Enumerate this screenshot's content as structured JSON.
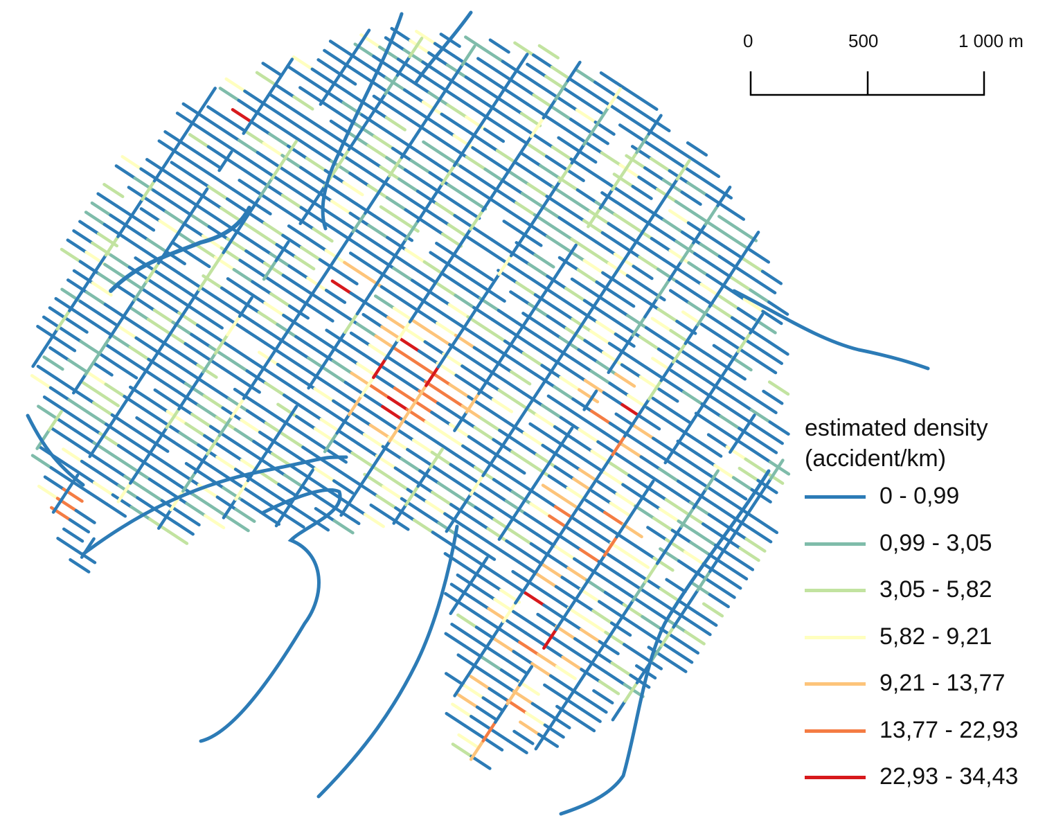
{
  "scale_bar": {
    "labels": [
      "0",
      "500",
      "1 000 m"
    ]
  },
  "legend": {
    "title_line1": "estimated density",
    "title_line2": "(accident/km)",
    "classes": [
      {
        "label": "0 - 0,99",
        "color": "#2c7bb6"
      },
      {
        "label": "0,99 - 3,05",
        "color": "#7fbcaa"
      },
      {
        "label": "3,05 - 5,82",
        "color": "#c2e3a0"
      },
      {
        "label": "5,82 - 9,21",
        "color": "#ffffbf"
      },
      {
        "label": "9,21 - 13,77",
        "color": "#fdc47a"
      },
      {
        "label": "13,77 - 22,93",
        "color": "#f47c43"
      },
      {
        "label": "22,93 - 34,43",
        "color": "#d7191c"
      }
    ]
  }
}
